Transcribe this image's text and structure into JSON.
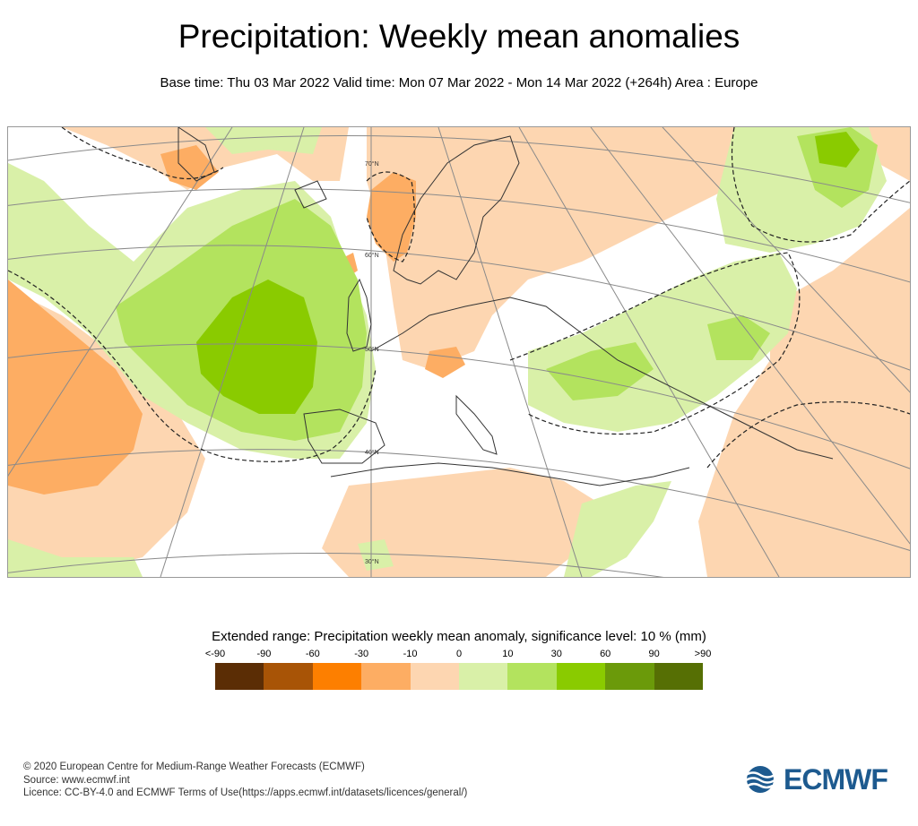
{
  "title": "Precipitation: Weekly mean anomalies",
  "subtitle": "Base time: Thu 03 Mar 2022 Valid time: Mon 07 Mar 2022 - Mon 14 Mar 2022 (+264h) Area : Europe",
  "map": {
    "lat_labels": [
      "70°N",
      "60°N",
      "50°N",
      "40°N",
      "30°N"
    ]
  },
  "legend": {
    "title": "Extended range: Precipitation weekly mean anomaly, significance level: 10 % (mm)",
    "ticks": [
      "<-90",
      "-90",
      "-60",
      "-30",
      "-10",
      "0",
      "10",
      "30",
      "60",
      "90",
      ">90"
    ],
    "colors": [
      "#5b2d05",
      "#a85406",
      "#fd7f00",
      "#fdad63",
      "#fdd6b1",
      "#d9f0a8",
      "#b3e35e",
      "#8acb00",
      "#6b9a0a",
      "#566f04"
    ]
  },
  "footer": {
    "line1": "© 2020 European Centre for Medium-Range Weather Forecasts (ECMWF)",
    "line2": "Source: www.ecmwf.int",
    "line3": "Licence: CC-BY-4.0 and ECMWF Terms of Use(https://apps.ecmwf.int/datasets/licences/general/)"
  },
  "logo": {
    "text": "ECMWF",
    "color": "#1d5a8f"
  }
}
